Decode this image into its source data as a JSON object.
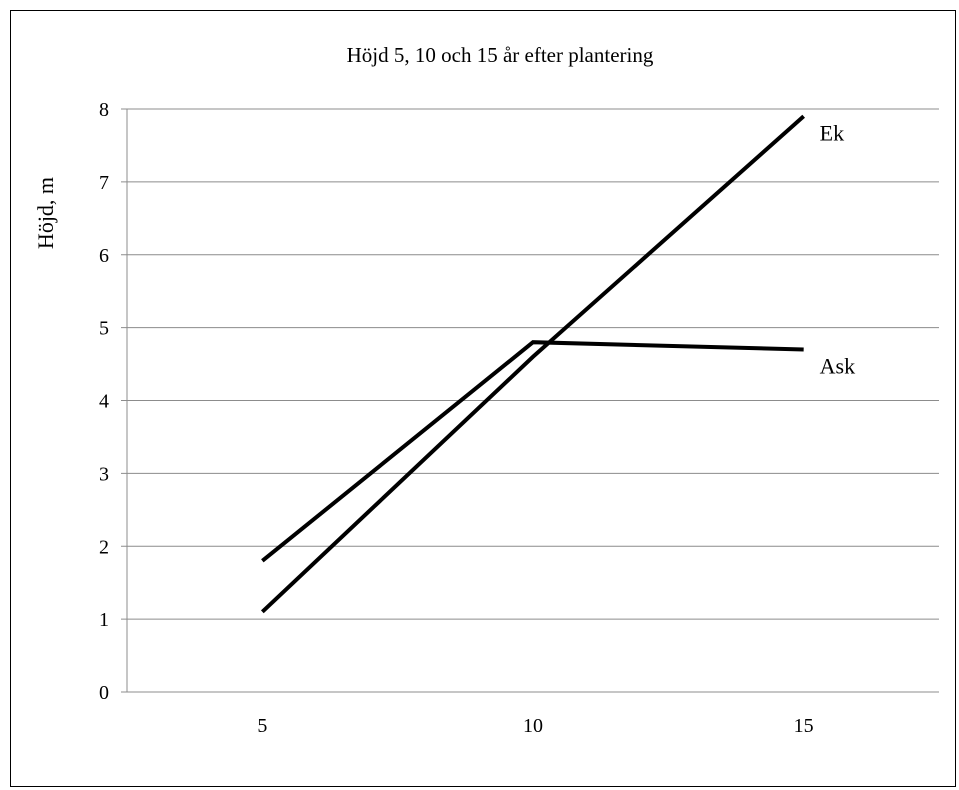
{
  "chart_data": {
    "type": "line",
    "title": "Höjd 5, 10 och 15 år efter plantering",
    "xlabel": "",
    "ylabel": "Höjd, m",
    "x": [
      5,
      10,
      15
    ],
    "xticks": [
      "5",
      "10",
      "15"
    ],
    "yticks": [
      "0",
      "1",
      "2",
      "3",
      "4",
      "5",
      "6",
      "7",
      "8"
    ],
    "ylim": [
      0,
      8
    ],
    "grid": true,
    "series": [
      {
        "name": "Ask",
        "values": [
          1.8,
          4.8,
          4.7
        ]
      },
      {
        "name": "Ek",
        "values": [
          1.1,
          4.6,
          7.9
        ]
      }
    ],
    "line_color": "#000000",
    "grid_color": "#8c8c8c"
  }
}
